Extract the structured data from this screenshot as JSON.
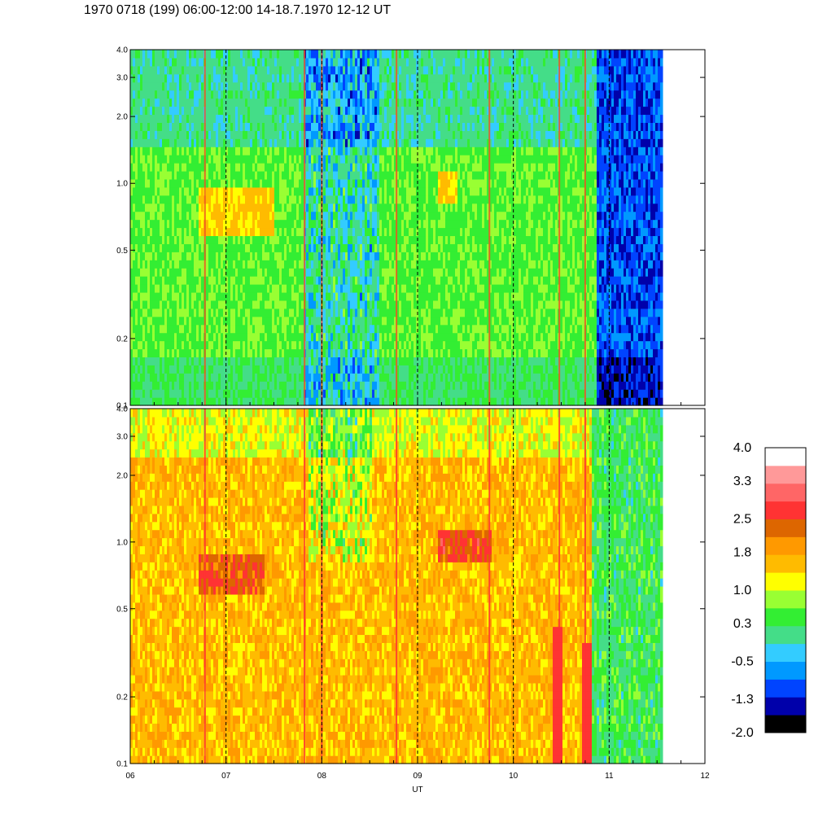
{
  "title": "1970 0718 (199) 06:00-12:00 14-18.7.1970  12-12 UT",
  "chart_data": [
    {
      "type": "heatmap",
      "panel": "top",
      "y_scale": "log",
      "ylim": [
        0.1,
        4.0
      ],
      "y_ticks": [
        "0.1",
        "0.2",
        "0.5",
        "1.0",
        "2.0",
        "3.0",
        "4.0"
      ],
      "y_tick_values": [
        0.1,
        0.2,
        0.5,
        1.0,
        2.0,
        3.0,
        4.0
      ],
      "xlim": [
        6,
        12
      ],
      "x_data_end": 11.55,
      "vertical_dashed_lines": [
        7,
        8,
        9,
        10,
        11
      ],
      "red_streaks": [
        6.78,
        7.82,
        8.0,
        8.78,
        9.75,
        10.48,
        10.75
      ]
    },
    {
      "type": "heatmap",
      "panel": "bottom",
      "y_scale": "log",
      "ylim": [
        0.1,
        4.0
      ],
      "y_ticks": [
        "0.1",
        "0.2",
        "0.5",
        "1.0",
        "2.0",
        "3.0",
        "4.0"
      ],
      "y_tick_values": [
        0.1,
        0.2,
        0.5,
        1.0,
        2.0,
        3.0,
        4.0
      ],
      "x_ticks": [
        "06",
        "07",
        "08",
        "09",
        "10",
        "11",
        "12"
      ],
      "x_tick_values": [
        6,
        7,
        8,
        9,
        10,
        11,
        12
      ],
      "xlabel": "UT",
      "xlim": [
        6,
        12
      ],
      "x_data_end": 11.55,
      "vertical_dashed_lines": [
        7,
        8,
        9,
        10,
        11
      ],
      "red_streaks": [
        6.78,
        7.82,
        8.0,
        8.78,
        9.75,
        10.48,
        10.75
      ]
    }
  ],
  "colorbar": {
    "labels": [
      "4.0",
      "3.3",
      "2.5",
      "1.8",
      "1.0",
      "0.3",
      "-0.5",
      "-1.3",
      "-2.0"
    ],
    "label_values": [
      4.0,
      3.3,
      2.5,
      1.8,
      1.0,
      0.3,
      -0.5,
      -1.3,
      -2.0
    ],
    "range": [
      -2.0,
      4.0
    ],
    "colors": [
      "#000000",
      "#0000aa",
      "#0044ff",
      "#0099ff",
      "#33ccff",
      "#44dd88",
      "#33ee33",
      "#99ff33",
      "#ffff00",
      "#ffbb00",
      "#ff9900",
      "#dd6600",
      "#ff3333",
      "#ff6666",
      "#ff9999",
      "#ffffff"
    ]
  }
}
